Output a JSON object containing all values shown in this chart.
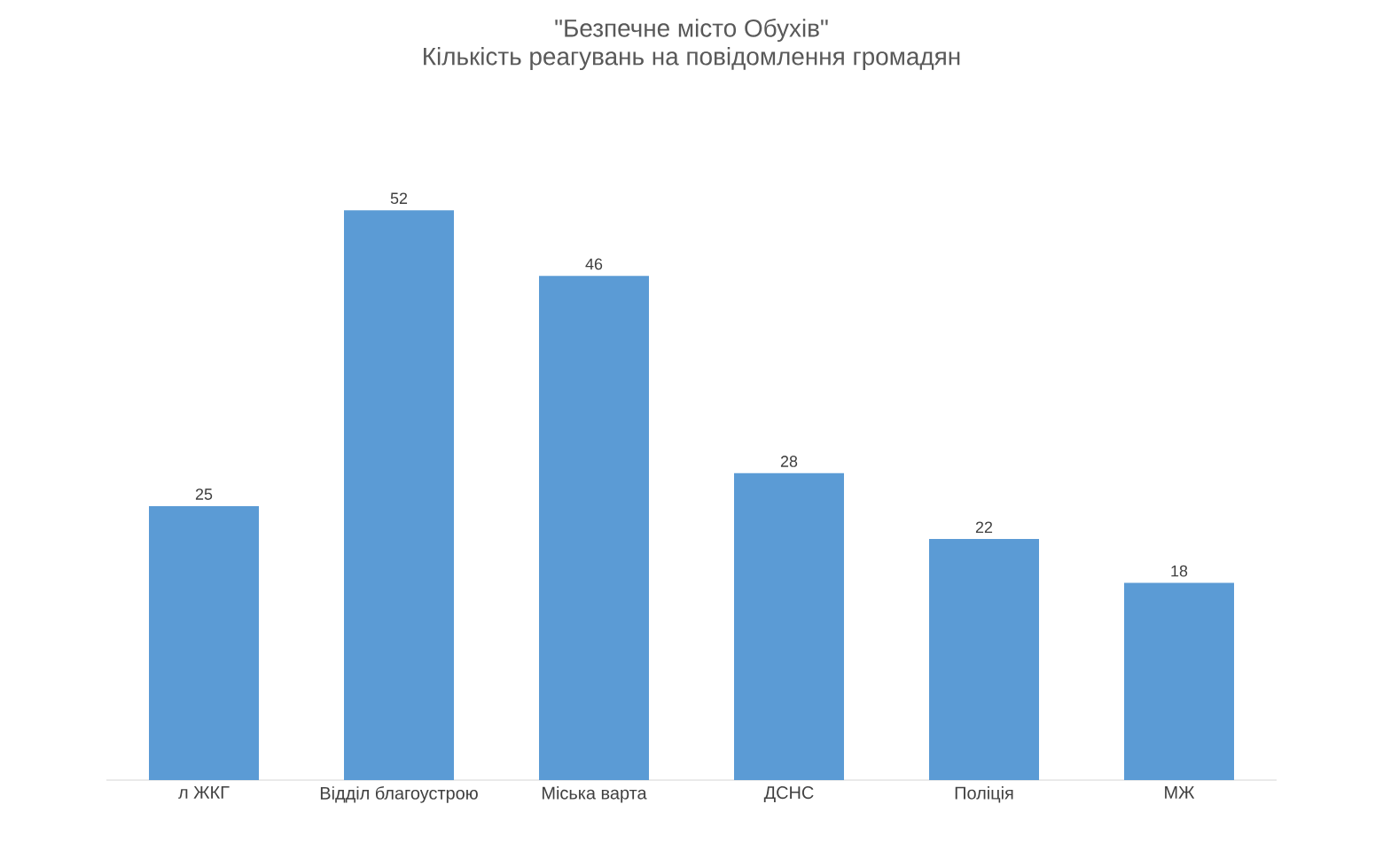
{
  "chart_data": {
    "type": "bar",
    "title": "\"Безпечне місто Обухів\"",
    "subtitle": "Кількість реагувань на повідомлення громадян",
    "categories": [
      "л ЖКГ",
      "Відділ благоустрою",
      "Міська варта",
      "ДСНС",
      "Поліція",
      "МЖ"
    ],
    "values": [
      25,
      52,
      46,
      28,
      22,
      18
    ],
    "color": "#5b9bd5",
    "data_labels": true
  }
}
